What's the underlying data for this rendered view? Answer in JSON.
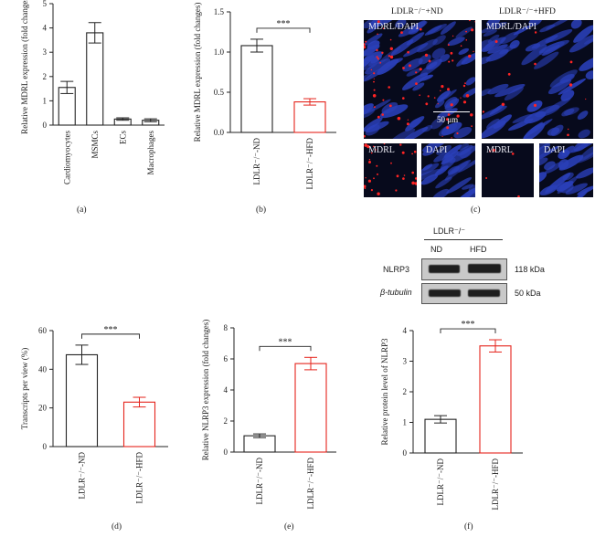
{
  "panels": {
    "a": {
      "label": "(a)"
    },
    "b": {
      "label": "(b)"
    },
    "c": {
      "label": "(c)",
      "groups": [
        "LDLR⁻/⁻+ND",
        "LDLR⁻/⁻+HFD"
      ],
      "main_labels": [
        "MDRL/DAPI",
        "MDRL/DAPI"
      ],
      "sub_labels": [
        "MDRL",
        "DAPI",
        "MDRL",
        "DAPI"
      ],
      "scale": "50 μm"
    },
    "d": {
      "label": "(d)"
    },
    "e": {
      "label": "(e)"
    },
    "f": {
      "label": "(f)"
    },
    "blot": {
      "header": "LDLR⁻/⁻",
      "lanes": [
        "ND",
        "HFD"
      ],
      "rows": [
        "NLRP3",
        "β-tubulin"
      ],
      "sizes": [
        "118 kDa",
        "50 kDa"
      ]
    }
  },
  "colors": {
    "control": "#222222",
    "hfd": "#e5231b"
  },
  "chart_data": [
    {
      "id": "a",
      "type": "bar",
      "categories": [
        "Cardiomyocytes",
        "MSMCs",
        "ECs",
        "Macrophages"
      ],
      "values": [
        1.55,
        3.8,
        0.25,
        0.2
      ],
      "errors": [
        0.25,
        0.42,
        0.05,
        0.06
      ],
      "ylabel": "Relative MDRL expression (fold changes)",
      "ylim": [
        0,
        5
      ],
      "yticks": [
        0,
        1,
        2,
        3,
        4,
        5
      ]
    },
    {
      "id": "b",
      "type": "bar",
      "categories": [
        "LDLR⁻/⁻-ND",
        "LDLR⁻/⁻-HFD"
      ],
      "values": [
        1.08,
        0.38
      ],
      "errors": [
        0.08,
        0.04
      ],
      "ylabel": "Relative MDRL expression (fold changes)",
      "ylim": [
        0,
        1.5
      ],
      "yticks": [
        0.0,
        0.5,
        1.0,
        1.5
      ],
      "significance": "***"
    },
    {
      "id": "d",
      "type": "bar",
      "categories": [
        "LDLR⁻/⁻-ND",
        "LDLR⁻/⁻-HFD"
      ],
      "values": [
        47.5,
        23
      ],
      "errors": [
        5,
        2.5
      ],
      "ylabel": "Transcripts per view (%)",
      "ylim": [
        0,
        60
      ],
      "yticks": [
        0,
        20,
        40,
        60
      ],
      "significance": "***"
    },
    {
      "id": "e",
      "type": "bar",
      "categories": [
        "LDLR⁻/⁻-ND",
        "LDLR⁻/⁻-HFD"
      ],
      "values": [
        1.05,
        5.7
      ],
      "errors": [
        0.12,
        0.4
      ],
      "ylabel": "Relative NLRP3 expression (fold changes)",
      "ylim": [
        0,
        8
      ],
      "yticks": [
        0,
        2,
        4,
        6,
        8
      ],
      "significance": "***"
    },
    {
      "id": "f",
      "type": "bar",
      "categories": [
        "LDLR⁻/⁻-ND",
        "LDLR⁻/⁻-HFD"
      ],
      "values": [
        1.1,
        3.5
      ],
      "errors": [
        0.12,
        0.2
      ],
      "ylabel": "Relative protein level of NLRP3",
      "ylim": [
        0,
        4
      ],
      "yticks": [
        0,
        1,
        2,
        3,
        4
      ],
      "significance": "***"
    }
  ]
}
